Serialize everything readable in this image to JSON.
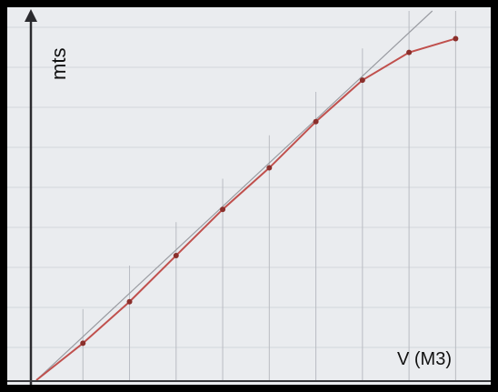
{
  "chart_data": {
    "type": "line",
    "title": "",
    "ylabel": "mts",
    "xlabel": "V (M3)",
    "grid": true,
    "xlim": [
      0,
      9.5
    ],
    "ylim": [
      0,
      8
    ],
    "series": [
      {
        "x": [
          0,
          1,
          2,
          3,
          4,
          5,
          6,
          7,
          8,
          9
        ],
        "values": [
          0,
          0.8,
          1.7,
          2.7,
          3.7,
          4.6,
          5.6,
          6.5,
          7.1,
          7.4
        ]
      },
      {
        "x": [
          0,
          8.5
        ],
        "values": [
          0,
          8
        ]
      }
    ],
    "colors": {
      "series_0": "#c0504d",
      "series_1": "#9a9ca2",
      "paper": "#eaecef",
      "grid": "#b9bcc2"
    }
  }
}
